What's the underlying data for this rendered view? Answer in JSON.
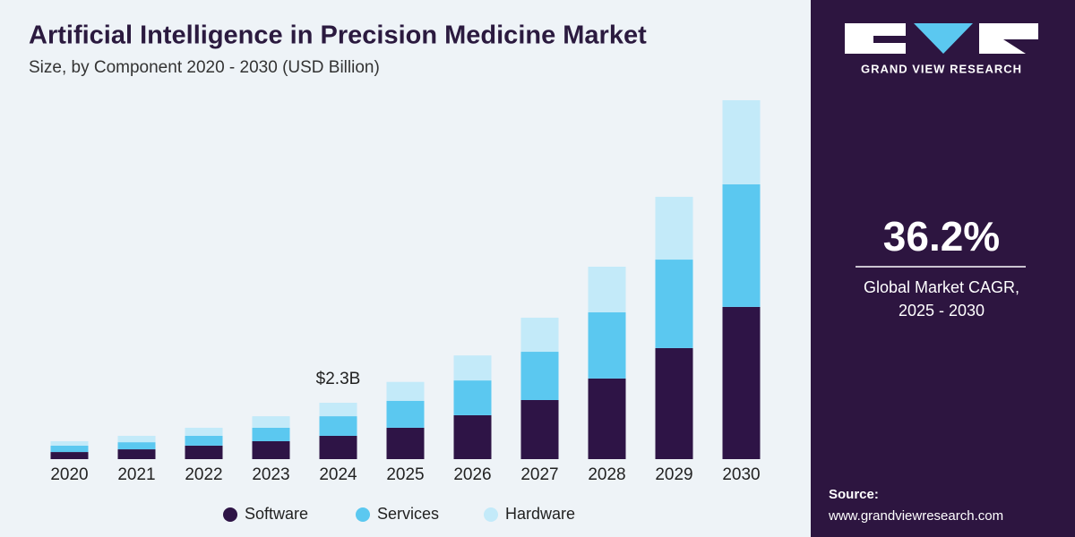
{
  "chart_data": {
    "type": "stacked-bar",
    "title": "Artificial Intelligence in Precision Medicine Market",
    "subtitle": "Size, by Component 2020 - 2030 (USD Billion)",
    "categories": [
      "2020",
      "2021",
      "2022",
      "2023",
      "2024",
      "2025",
      "2026",
      "2027",
      "2028",
      "2029",
      "2030"
    ],
    "series": [
      {
        "name": "Software",
        "color": "#2e1446",
        "values": [
          0.29,
          0.4,
          0.55,
          0.73,
          0.95,
          1.28,
          1.79,
          2.41,
          3.29,
          4.53,
          6.21
        ]
      },
      {
        "name": "Services",
        "color": "#5bc8f0",
        "values": [
          0.26,
          0.29,
          0.4,
          0.55,
          0.8,
          1.1,
          1.42,
          1.97,
          2.7,
          3.61,
          5.0
        ]
      },
      {
        "name": "Hardware",
        "color": "#c3eaf9",
        "values": [
          0.18,
          0.26,
          0.33,
          0.47,
          0.55,
          0.77,
          1.02,
          1.39,
          1.86,
          2.56,
          3.43
        ]
      }
    ],
    "annotation": {
      "text": "$2.3B",
      "category": "2024"
    }
  },
  "sidebar": {
    "brand": "GRAND VIEW RESEARCH",
    "cagr": "36.2%",
    "cagr_label": "Global Market CAGR,",
    "cagr_period": "2025 - 2030",
    "source_label": "Source:",
    "source_url": "www.grandviewresearch.com"
  }
}
